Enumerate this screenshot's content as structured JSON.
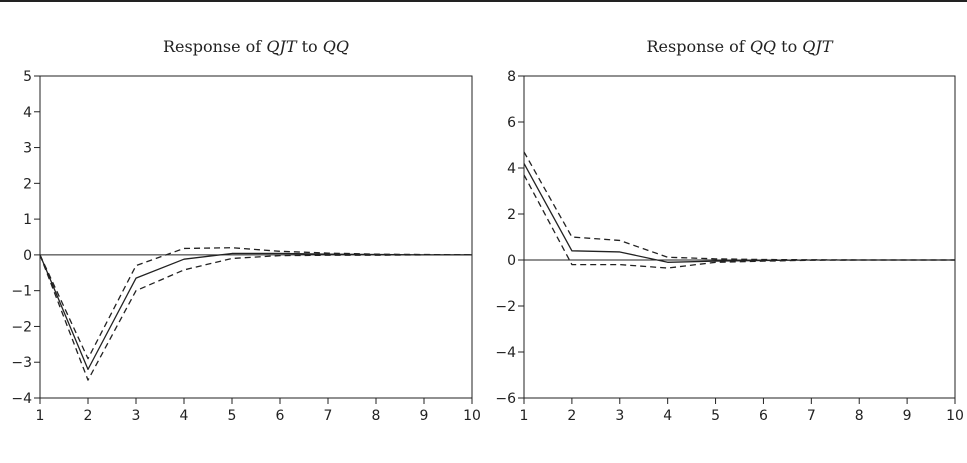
{
  "chart_data": [
    {
      "type": "line",
      "title": {
        "prefix": "Response of ",
        "var1": "QJT",
        "mid": " to ",
        "var2": "QQ"
      },
      "xlabel": "",
      "ylabel": "",
      "x": [
        1,
        2,
        3,
        4,
        5,
        6,
        7,
        8,
        9,
        10
      ],
      "xlim": [
        1,
        10
      ],
      "ylim": [
        -4,
        5
      ],
      "xticks": [
        "1",
        "2",
        "3",
        "4",
        "5",
        "6",
        "7",
        "8",
        "9",
        "10"
      ],
      "yticks": [
        {
          "value": 5,
          "label": "5"
        },
        {
          "value": 4,
          "label": "4"
        },
        {
          "value": 3,
          "label": "3"
        },
        {
          "value": 2,
          "label": "2"
        },
        {
          "value": 1,
          "label": "1"
        },
        {
          "value": 0,
          "label": "0"
        },
        {
          "value": -1,
          "label": "−1"
        },
        {
          "value": -2,
          "label": "−2"
        },
        {
          "value": -3,
          "label": "−3"
        },
        {
          "value": -4,
          "label": "−4"
        }
      ],
      "zero_line": true,
      "series": [
        {
          "style": "solid",
          "values": [
            0,
            -3.2,
            -0.65,
            -0.12,
            0.04,
            0.04,
            0.02,
            0.01,
            0.0,
            0.0
          ]
        },
        {
          "style": "dashed",
          "values": [
            0,
            -2.9,
            -0.3,
            0.18,
            0.2,
            0.1,
            0.05,
            0.02,
            0.01,
            0.0
          ]
        },
        {
          "style": "dashed",
          "values": [
            0,
            -3.5,
            -1.0,
            -0.42,
            -0.1,
            -0.02,
            -0.01,
            -0.01,
            0.0,
            0.0
          ]
        }
      ]
    },
    {
      "type": "line",
      "title": {
        "prefix": "Response of ",
        "var1": "QQ",
        "mid": " to ",
        "var2": "QJT"
      },
      "xlabel": "",
      "ylabel": "",
      "x": [
        1,
        2,
        3,
        4,
        5,
        6,
        7,
        8,
        9,
        10
      ],
      "xlim": [
        1,
        10
      ],
      "ylim": [
        -6,
        8
      ],
      "xticks": [
        "1",
        "2",
        "3",
        "4",
        "5",
        "6",
        "7",
        "8",
        "9",
        "10"
      ],
      "yticks": [
        {
          "value": 8,
          "label": "8"
        },
        {
          "value": 6,
          "label": "6"
        },
        {
          "value": 4,
          "label": "4"
        },
        {
          "value": 2,
          "label": "2"
        },
        {
          "value": 0,
          "label": "0"
        },
        {
          "value": -2,
          "label": "−2"
        },
        {
          "value": -4,
          "label": "−4"
        },
        {
          "value": -6,
          "label": "−6"
        }
      ],
      "zero_line": true,
      "series": [
        {
          "style": "solid",
          "values": [
            4.2,
            0.4,
            0.35,
            -0.1,
            -0.05,
            -0.02,
            0.0,
            0.0,
            0.0,
            0.0
          ]
        },
        {
          "style": "dashed",
          "values": [
            4.7,
            1.0,
            0.85,
            0.12,
            0.05,
            0.02,
            0.01,
            0.0,
            0.0,
            0.0
          ]
        },
        {
          "style": "dashed",
          "values": [
            3.7,
            -0.2,
            -0.2,
            -0.35,
            -0.1,
            -0.05,
            -0.01,
            0.0,
            0.0,
            0.0
          ]
        }
      ]
    }
  ]
}
